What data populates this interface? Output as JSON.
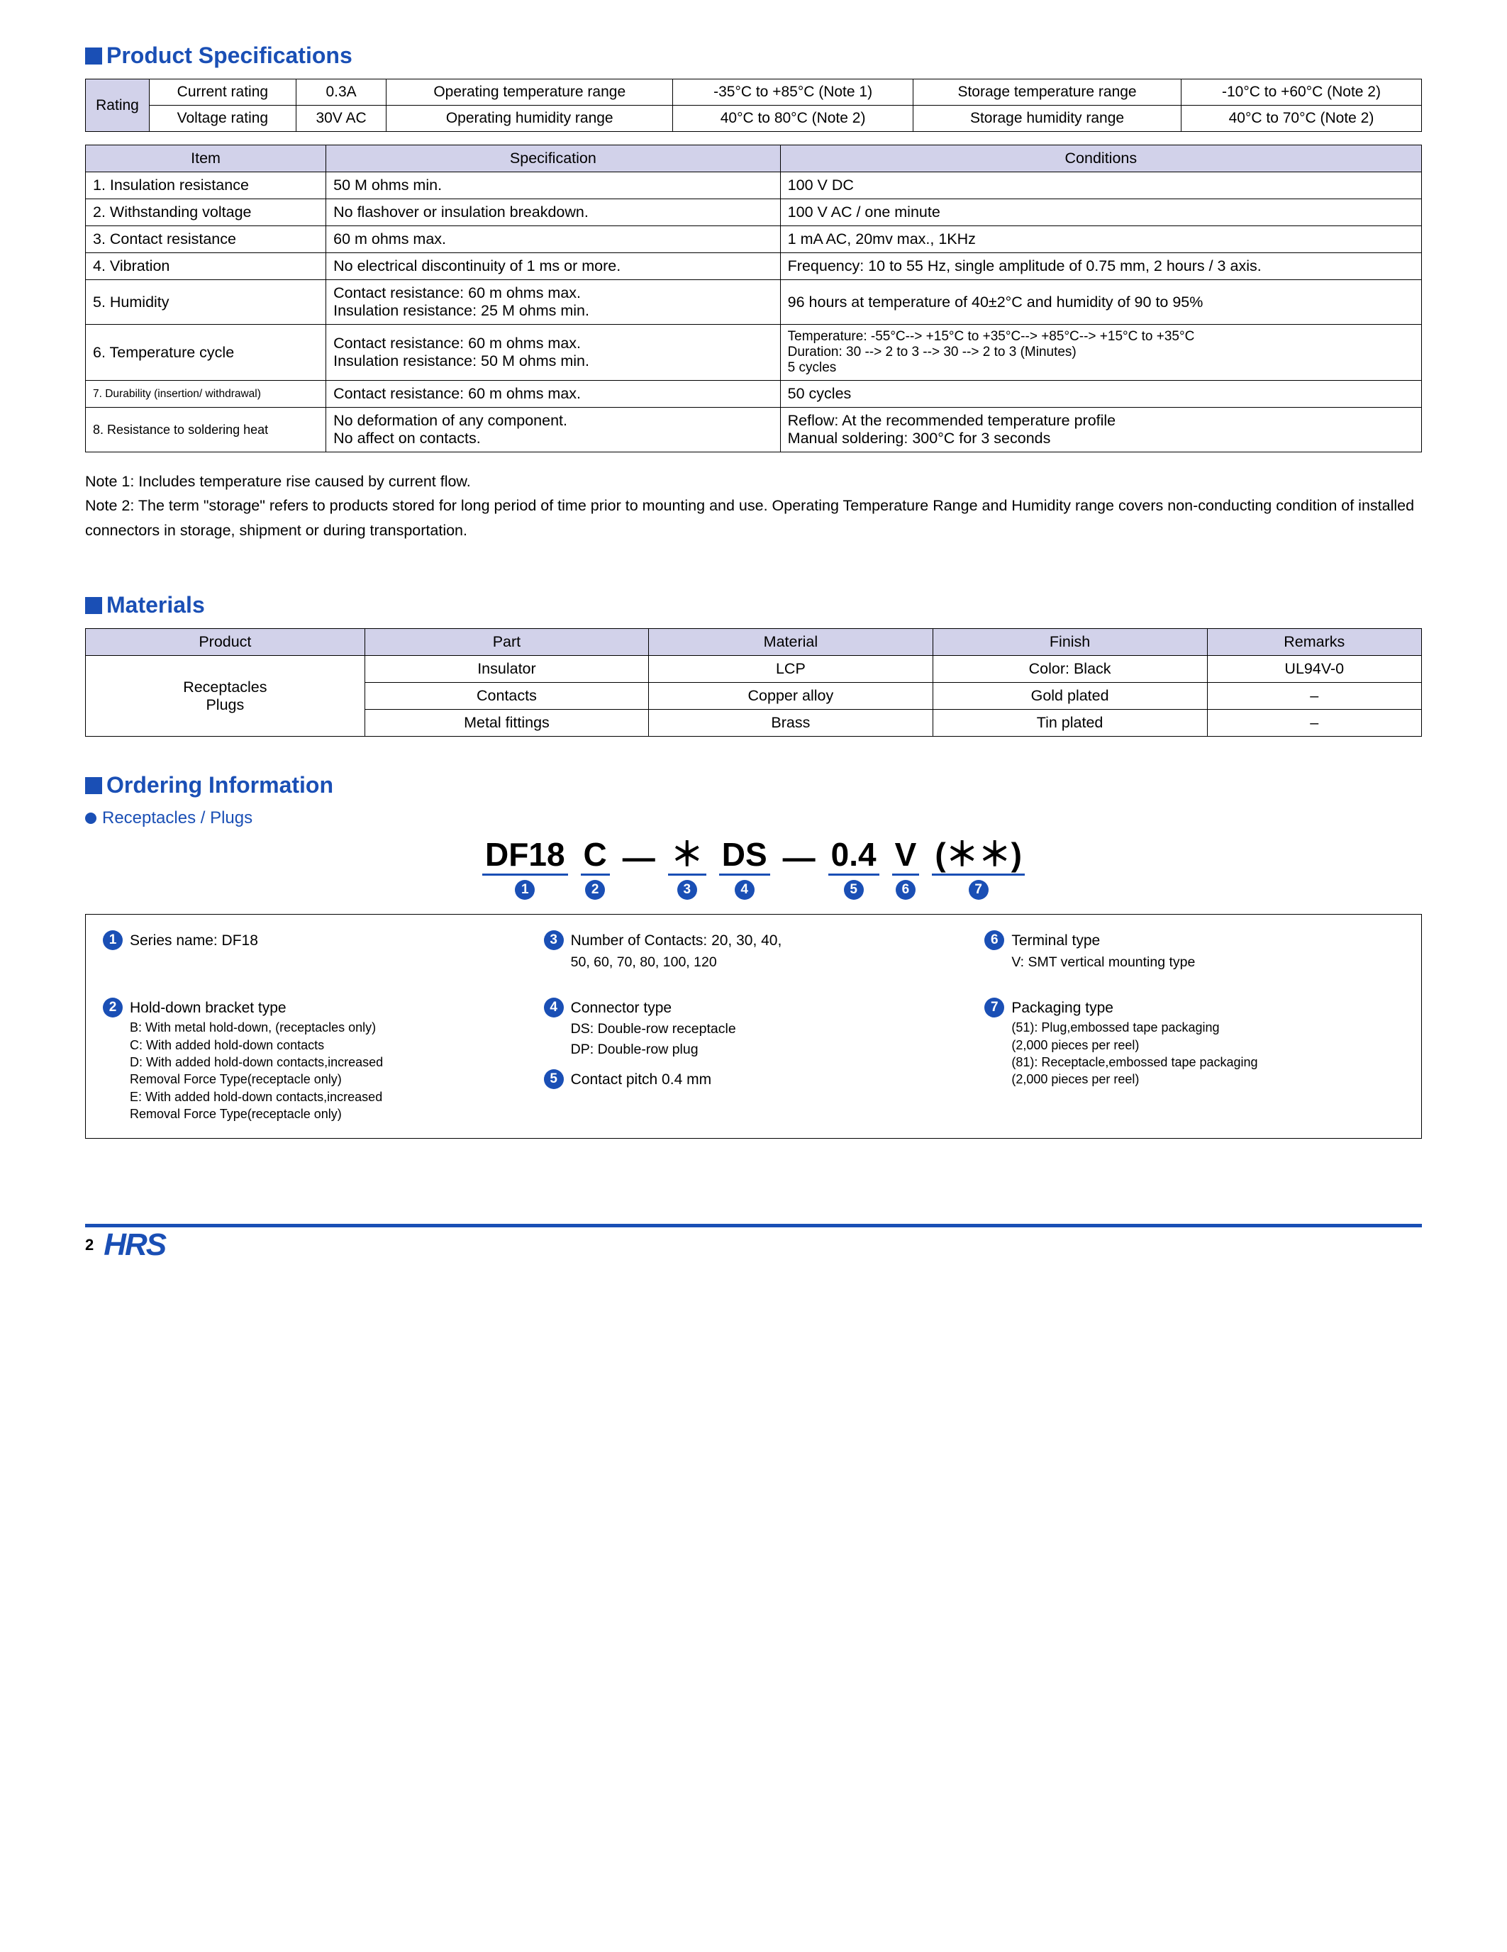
{
  "colors": {
    "brand": "#1a4fb5",
    "tableHead": "#d2d2ea",
    "border": "#000000"
  },
  "sections": {
    "spec": "Product Specifications",
    "materials": "Materials",
    "ordering": "Ordering Information"
  },
  "ratings": {
    "label": "Rating",
    "rows": [
      {
        "name": "Current rating",
        "val": "0.3A",
        "p": "Operating temperature range",
        "pv": "-35°C  to +85°C (Note 1)",
        "s": "Storage temperature range",
        "sv": "-10°C to +60°C (Note 2)"
      },
      {
        "name": "Voltage rating",
        "val": "30V AC",
        "p": "Operating humidity range",
        "pv": "40°C  to   80°C (Note 2)",
        "s": "Storage humidity range",
        "sv": "40°C to   70°C (Note 2)"
      }
    ]
  },
  "specTable": {
    "columns": [
      "Item",
      "Specification",
      "Conditions"
    ],
    "rows": [
      {
        "item": "1. Insulation resistance",
        "spec": "50 M ohms min.",
        "cond": "100 V DC"
      },
      {
        "item": "2. Withstanding voltage",
        "spec": "No flashover or insulation breakdown.",
        "cond": "100 V AC / one minute"
      },
      {
        "item": "3. Contact resistance",
        "spec": "60 m ohms max.",
        "cond": "1 mA AC, 20mv max., 1KHz"
      },
      {
        "item": "4. Vibration",
        "spec": "No electrical discontinuity of 1 ms or more.",
        "cond": "Frequency: 10 to 55 Hz, single amplitude of 0.75 mm, 2 hours / 3 axis."
      },
      {
        "item": "5. Humidity",
        "spec": "Contact resistance: 60 m ohms max.\nInsulation resistance: 25 M ohms min.",
        "cond": "96 hours at temperature of 40±2°C and humidity of 90 to 95%"
      },
      {
        "item": "6. Temperature cycle",
        "spec": "Contact resistance: 60 m ohms max.\nInsulation resistance: 50 M ohms min.",
        "cond": "Temperature: -55°C--> +15°C to +35°C--> +85°C--> +15°C  to +35°C\nDuration: 30 --> 2 to 3 --> 30 --> 2 to 3 (Minutes)\n5 cycles"
      },
      {
        "item": "7. Durability (insertion/ withdrawal)",
        "spec": "Contact resistance: 60 m ohms max.",
        "cond": "50 cycles",
        "small": true
      },
      {
        "item": "8. Resistance to soldering heat",
        "spec": "No deformation of any component.\nNo affect on contacts.",
        "cond": "Reflow: At the recommended temperature profile\nManual soldering: 300°C for 3 seconds",
        "small2": true
      }
    ]
  },
  "notes": {
    "n1": "Note 1: Includes temperature rise caused by current flow.",
    "n2": "Note 2: The term \"storage\" refers to products stored for long period of time prior to mounting and use. Operating Temperature Range and Humidity range covers non-conducting condition of  installed connectors in storage, shipment or during transportation."
  },
  "materials": {
    "columns": [
      "Product",
      "Part",
      "Material",
      "Finish",
      "Remarks"
    ],
    "productCell": "Receptacles\nPlugs",
    "rows": [
      {
        "part": "Insulator",
        "material": "LCP",
        "finish": "Color: Black",
        "remarks": "UL94V-0"
      },
      {
        "part": "Contacts",
        "material": "Copper alloy",
        "finish": "Gold plated",
        "remarks": "–"
      },
      {
        "part": "Metal fittings",
        "material": "Brass",
        "finish": "Tin plated",
        "remarks": "–"
      }
    ]
  },
  "ordering": {
    "subtitle": "Receptacles / Plugs",
    "segments": [
      {
        "txt": "DF18",
        "n": "1"
      },
      {
        "txt": "C",
        "n": "2"
      },
      {
        "sep": "―"
      },
      {
        "txt": "＊",
        "n": "3"
      },
      {
        "txt": "DS",
        "n": "4"
      },
      {
        "sep": "―"
      },
      {
        "txt": "0.4",
        "n": "5"
      },
      {
        "txt": "V",
        "n": "6"
      },
      {
        "txt": "(＊＊)",
        "n": "7"
      }
    ],
    "items": [
      {
        "n": "1",
        "head": "Series name: DF18"
      },
      {
        "n": "3",
        "head": "Number of Contacts: 20, 30, 40,",
        "body": "50, 60, 70, 80, 100, 120"
      },
      {
        "n": "6",
        "head": "Terminal type",
        "body": "V: SMT vertical mounting type"
      },
      {
        "n": "2",
        "head": "Hold-down bracket type",
        "bodyTight": "B: With metal hold-down, (receptacles only)\nC: With  added hold-down contacts\nD: With added hold-down contacts,increased\n    Removal Force Type(receptacle only)\nE: With added hold-down contacts,increased\n    Removal Force Type(receptacle only)"
      },
      {
        "n": "4",
        "head": "Connector type",
        "body": "DS: Double-row receptacle\nDP: Double-row plug",
        "extra": {
          "n": "5",
          "head": "Contact pitch  0.4 mm"
        }
      },
      {
        "n": "7",
        "head": "Packaging type",
        "bodyTight": "(51): Plug,embossed tape packaging\n(2,000 pieces per reel)\n(81): Receptacle,embossed tape packaging\n(2,000 pieces per reel)"
      }
    ]
  },
  "footer": {
    "page": "2",
    "logo": "HRS"
  }
}
